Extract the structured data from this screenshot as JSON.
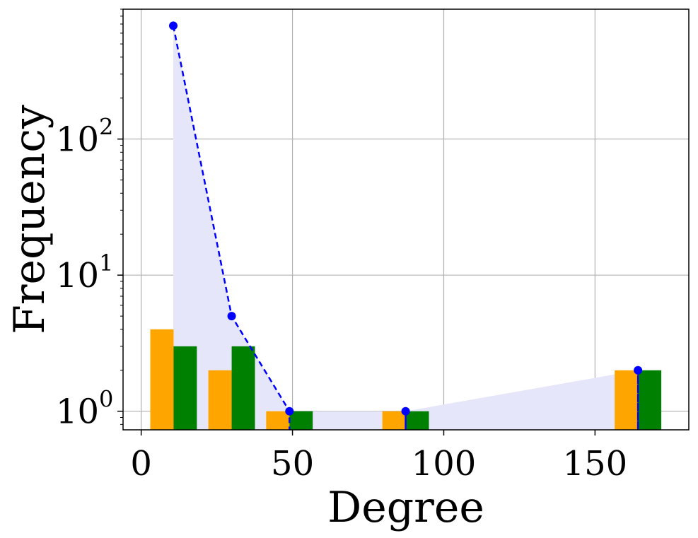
{
  "chart_data": {
    "type": "bar",
    "xlabel": "Degree",
    "ylabel": "Frequency",
    "xlim": [
      -6,
      181
    ],
    "ylim": [
      0.73,
      900
    ],
    "y_scale": "log",
    "grid": true,
    "x_ticks": [
      {
        "value": 0,
        "label": "0"
      },
      {
        "value": 50,
        "label": "50"
      },
      {
        "value": 100,
        "label": "100"
      },
      {
        "value": 150,
        "label": "150"
      }
    ],
    "y_ticks": [
      {
        "value": 1,
        "base": "10",
        "exp": "0"
      },
      {
        "value": 10,
        "base": "10",
        "exp": "1"
      },
      {
        "value": 100,
        "base": "10",
        "exp": "2"
      }
    ],
    "series": [
      {
        "kind": "bar",
        "color": "#FFA500",
        "bins": [
          {
            "x0": 3,
            "x1": 10.7,
            "value": 4
          },
          {
            "x0": 22.2,
            "x1": 29.9,
            "value": 2
          },
          {
            "x0": 41.3,
            "x1": 49,
            "value": 1
          },
          {
            "x0": 79.7,
            "x1": 87.4,
            "value": 1
          },
          {
            "x0": 156.5,
            "x1": 164.2,
            "value": 2
          }
        ]
      },
      {
        "kind": "bar",
        "color": "#008000",
        "bins": [
          {
            "x0": 10.7,
            "x1": 18.4,
            "value": 3
          },
          {
            "x0": 29.9,
            "x1": 37.6,
            "value": 3
          },
          {
            "x0": 49,
            "x1": 56.7,
            "value": 1
          },
          {
            "x0": 87.4,
            "x1": 95.1,
            "value": 1
          },
          {
            "x0": 164.2,
            "x1": 171.9,
            "value": 2
          }
        ]
      },
      {
        "kind": "line",
        "color": "#0000FF",
        "fill_color": "#E6E6FA",
        "points": [
          {
            "x": 10.6,
            "y": 680
          },
          {
            "x": 29.9,
            "y": 5
          },
          {
            "x": 49,
            "y": 1
          },
          {
            "x": 87.4,
            "y": 1
          },
          {
            "x": 164.2,
            "y": 2
          }
        ]
      }
    ]
  }
}
